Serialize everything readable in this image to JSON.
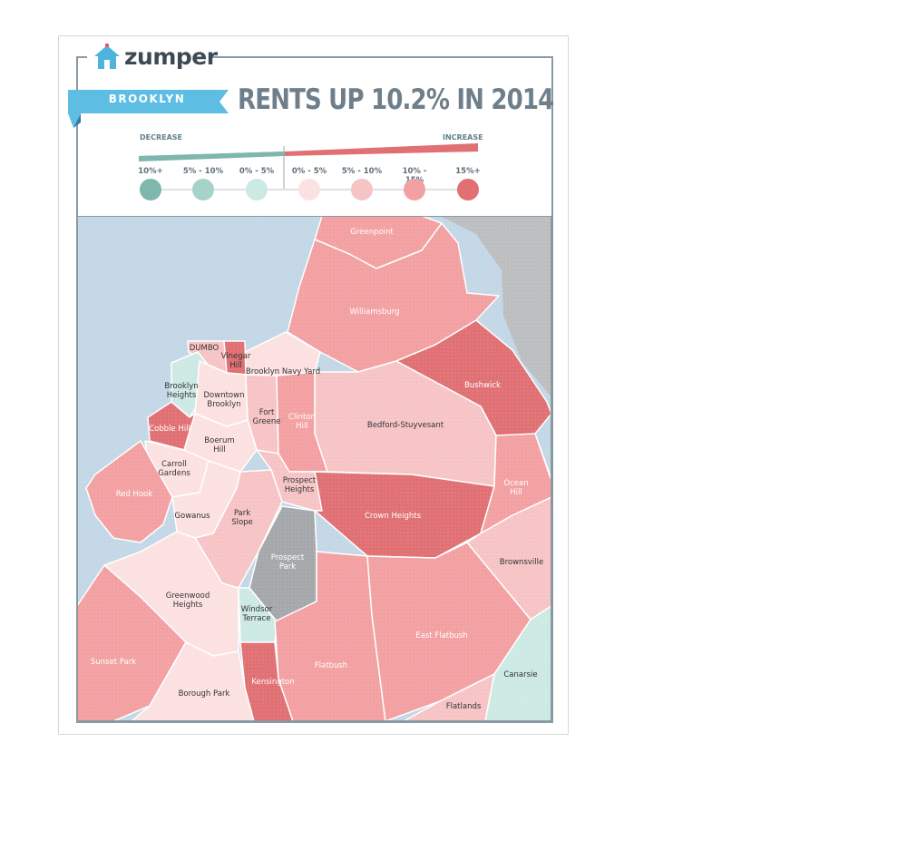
{
  "brand": {
    "name": "zumper",
    "logo_icon": "house-icon"
  },
  "ribbon": {
    "label": "BROOKLYN"
  },
  "headline": "RENTS UP 10.2% IN 2014",
  "legend": {
    "decrease_label": "DECREASE",
    "increase_label": "INCREASE",
    "ranges": [
      {
        "label": "10%+",
        "color": "#7fb6ad"
      },
      {
        "label": "5% - 10%",
        "color": "#a7d2ca"
      },
      {
        "label": "0% - 5%",
        "color": "#cde9e4"
      },
      {
        "label": "0% - 5%",
        "color": "#fce1e1"
      },
      {
        "label": "5% - 10%",
        "color": "#f7c4c6"
      },
      {
        "label": "10% - 15%",
        "color": "#f3a0a2"
      },
      {
        "label": "15%+",
        "color": "#e07073"
      }
    ]
  },
  "map": {
    "water_color": "#c3d7e6",
    "other_color": "#bdbec0",
    "park_color": "#a5a8ab",
    "neighborhoods": [
      {
        "name": "Greenpoint",
        "category": "10% - 15%"
      },
      {
        "name": "Williamsburg",
        "category": "10% - 15%"
      },
      {
        "name": "DUMBO",
        "category": "5% - 10%"
      },
      {
        "name": "Vinegar Hill",
        "category": "15%+"
      },
      {
        "name": "Brooklyn Navy Yard",
        "category": "0% - 5%"
      },
      {
        "name": "Brooklyn Heights",
        "category": "0% - 5% decrease"
      },
      {
        "name": "Downtown Brooklyn",
        "category": "0% - 5%"
      },
      {
        "name": "Fort Greene",
        "category": "5% - 10%"
      },
      {
        "name": "Clinton Hill",
        "category": "10% - 15%"
      },
      {
        "name": "Bedford-Stuyvesant",
        "category": "5% - 10%"
      },
      {
        "name": "Bushwick",
        "category": "15%+"
      },
      {
        "name": "Cobble Hill",
        "category": "15%+"
      },
      {
        "name": "Boerum Hill",
        "category": "0% - 5%"
      },
      {
        "name": "Carroll Gardens",
        "category": "0% - 5%"
      },
      {
        "name": "Red Hook",
        "category": "10% - 15%"
      },
      {
        "name": "Gowanus",
        "category": "0% - 5%"
      },
      {
        "name": "Park Slope",
        "category": "5% - 10%"
      },
      {
        "name": "Prospect Heights",
        "category": "5% - 10%"
      },
      {
        "name": "Crown Heights",
        "category": "15%+"
      },
      {
        "name": "Ocean Hill",
        "category": "10% - 15%"
      },
      {
        "name": "Brownsville",
        "category": "5% - 10%"
      },
      {
        "name": "Prospect Park",
        "category": "park"
      },
      {
        "name": "Greenwood Heights",
        "category": "0% - 5%"
      },
      {
        "name": "Windsor Terrace",
        "category": "0% - 5% decrease"
      },
      {
        "name": "Sunset Park",
        "category": "10% - 15%"
      },
      {
        "name": "Borough Park",
        "category": "0% - 5%"
      },
      {
        "name": "Kensington",
        "category": "15%+"
      },
      {
        "name": "Flatbush",
        "category": "10% - 15%"
      },
      {
        "name": "East Flatbush",
        "category": "10% - 15%"
      },
      {
        "name": "Flatlands",
        "category": "5% - 10%"
      },
      {
        "name": "Canarsie",
        "category": "0% - 5% decrease"
      }
    ]
  }
}
